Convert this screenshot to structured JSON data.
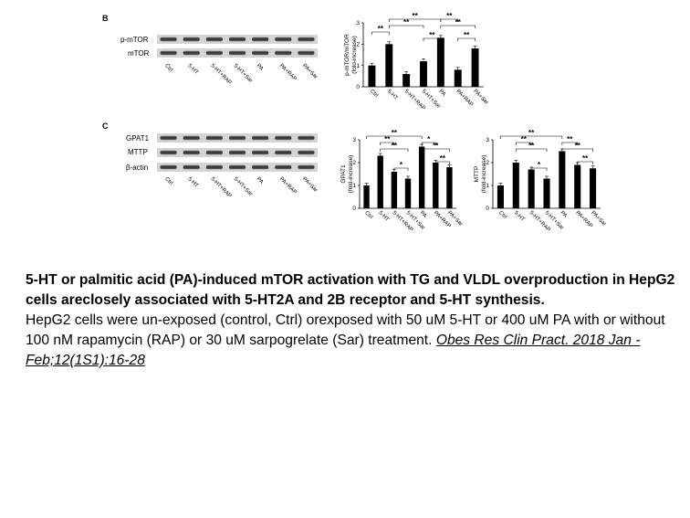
{
  "figure": {
    "panel_b": {
      "letter": "B",
      "blot_rows": [
        "p-mTOR",
        "mTOR"
      ],
      "lanes": [
        "Ctrl",
        "5-HT",
        "5-HT+RAP",
        "5-HT+Sar",
        "PA",
        "PA+RAP",
        "PA+Sar"
      ]
    },
    "panel_c": {
      "letter": "C",
      "blot_rows": [
        "GPAT1",
        "MTTP",
        "β-actin"
      ],
      "lanes": [
        "Ctrl",
        "5-HT",
        "5-HT+RAP",
        "5-HT+Sar",
        "PA",
        "PA+RAP",
        "PA+Sar"
      ]
    }
  },
  "chart_data": [
    {
      "type": "bar",
      "categories": [
        "Ctrl",
        "5-HT",
        "5-HT+RAP",
        "5-HT+Sar",
        "PA",
        "PA+RAP",
        "PA+Sar"
      ],
      "values": [
        1.0,
        2.0,
        0.6,
        1.2,
        2.3,
        0.8,
        1.8
      ],
      "ylabel": "p-mTOR/mTOR\n(fold-increase)",
      "ylim": [
        0,
        3
      ],
      "yticks": [
        0,
        1,
        2,
        3
      ],
      "significance": [
        "**",
        "**",
        "**",
        "**",
        "**",
        "**",
        "**"
      ]
    },
    {
      "type": "bar",
      "categories": [
        "Ctrl",
        "5-HT",
        "5-HT+RAP",
        "5-HT+Sar",
        "PA",
        "PA+RAP",
        "PA+Sar"
      ],
      "values": [
        1.0,
        2.3,
        1.6,
        1.3,
        2.7,
        2.0,
        1.8
      ],
      "ylabel": "GPAT1\n(fold-increase)",
      "ylim": [
        0,
        3
      ],
      "yticks": [
        0,
        1,
        2,
        3
      ],
      "significance": [
        "**",
        "**",
        "**",
        "*",
        "**",
        "**",
        "*"
      ]
    },
    {
      "type": "bar",
      "categories": [
        "Ctrl",
        "5-HT",
        "5-HT+RAP",
        "5-HT+Sar",
        "PA",
        "PA+RAP",
        "PA+Sar"
      ],
      "values": [
        1.0,
        2.0,
        1.7,
        1.3,
        2.5,
        1.9,
        1.75
      ],
      "ylabel": "MTTP\n(fold-increase)",
      "ylim": [
        0,
        3
      ],
      "yticks": [
        0,
        1,
        2,
        3
      ],
      "significance": [
        "**",
        "**",
        "**",
        "**",
        "**",
        "**",
        "*"
      ]
    }
  ],
  "caption": {
    "title": "5-HT or palmitic acid (PA)-induced mTOR activation with TG and VLDL overproduction in HepG2 cells areclosely associated with 5-HT2A and 2B receptor and 5-HT synthesis.",
    "body": "HepG2 cells were un-exposed (control, Ctrl) orexposed with 50 uM 5-HT or 400 uM PA with or without 100 nM rapamycin (RAP) or 30 uM sarpogrelate (Sar) treatment. ",
    "citation": "Obes Res Clin Pract. 2018 Jan - Feb;12(1S1):16-28"
  }
}
